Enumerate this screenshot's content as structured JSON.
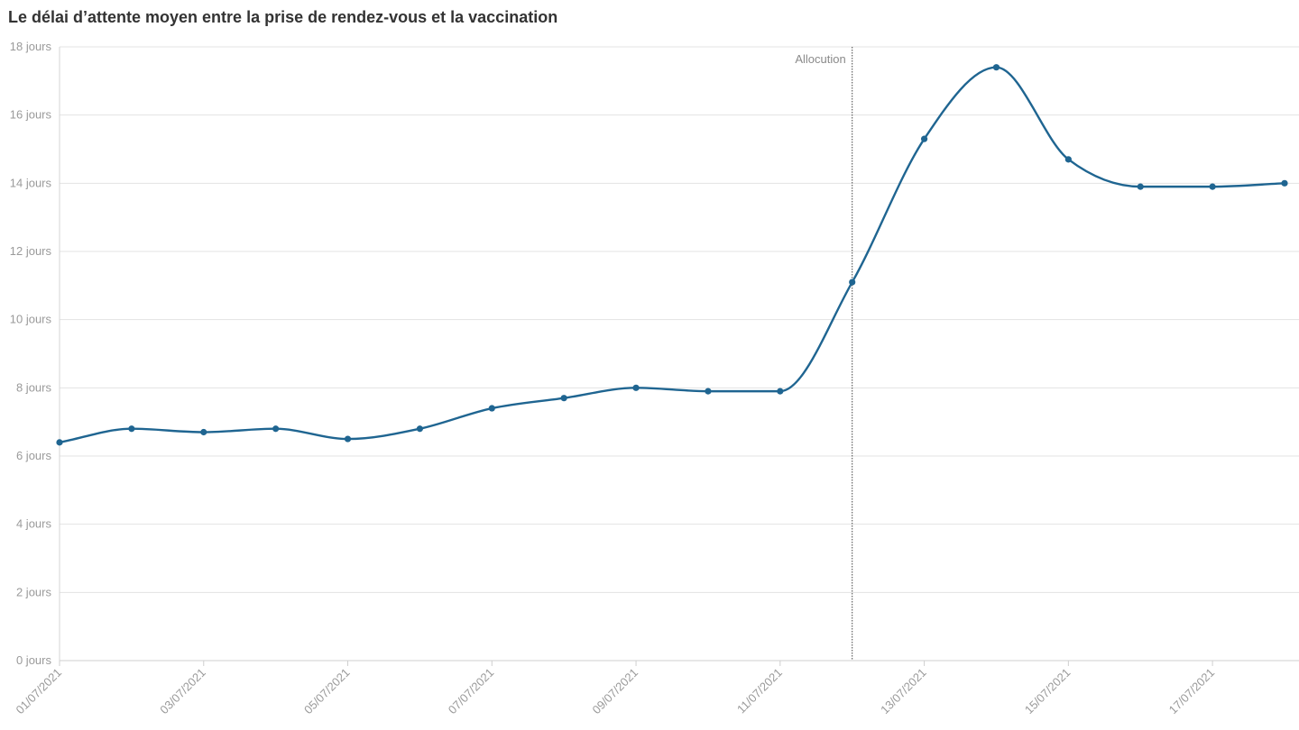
{
  "chart_data": {
    "type": "line",
    "title": "Le délai d’attente moyen entre la prise de rendez-vous et la vaccination",
    "xlabel": "",
    "ylabel": "",
    "y_unit_suffix": " jours",
    "ylim": [
      0,
      18
    ],
    "y_ticks": [
      0,
      2,
      4,
      6,
      8,
      10,
      12,
      14,
      16,
      18
    ],
    "y_tick_labels": [
      "0 jours",
      "2 jours",
      "4 jours",
      "6 jours",
      "8 jours",
      "10 jours",
      "12 jours",
      "14 jours",
      "16 jours",
      "18 jours"
    ],
    "x": [
      "01/07/2021",
      "02/07/2021",
      "03/07/2021",
      "04/07/2021",
      "05/07/2021",
      "06/07/2021",
      "07/07/2021",
      "08/07/2021",
      "09/07/2021",
      "10/07/2021",
      "11/07/2021",
      "12/07/2021",
      "13/07/2021",
      "14/07/2021",
      "15/07/2021",
      "16/07/2021",
      "17/07/2021",
      "18/07/2021"
    ],
    "x_tick_labels": [
      "01/07/2021",
      "03/07/2021",
      "05/07/2021",
      "07/07/2021",
      "09/07/2021",
      "11/07/2021",
      "13/07/2021",
      "15/07/2021",
      "17/07/2021"
    ],
    "series": [
      {
        "values": [
          6.4,
          6.8,
          6.7,
          6.8,
          6.5,
          6.8,
          7.4,
          7.7,
          8.0,
          7.9,
          7.9,
          11.1,
          15.3,
          17.4,
          14.7,
          13.9,
          13.9,
          14.0
        ],
        "color": "#1f6591"
      }
    ],
    "annotations": [
      {
        "x": "12/07/2021",
        "label": "Allocution"
      }
    ],
    "grid": true
  }
}
